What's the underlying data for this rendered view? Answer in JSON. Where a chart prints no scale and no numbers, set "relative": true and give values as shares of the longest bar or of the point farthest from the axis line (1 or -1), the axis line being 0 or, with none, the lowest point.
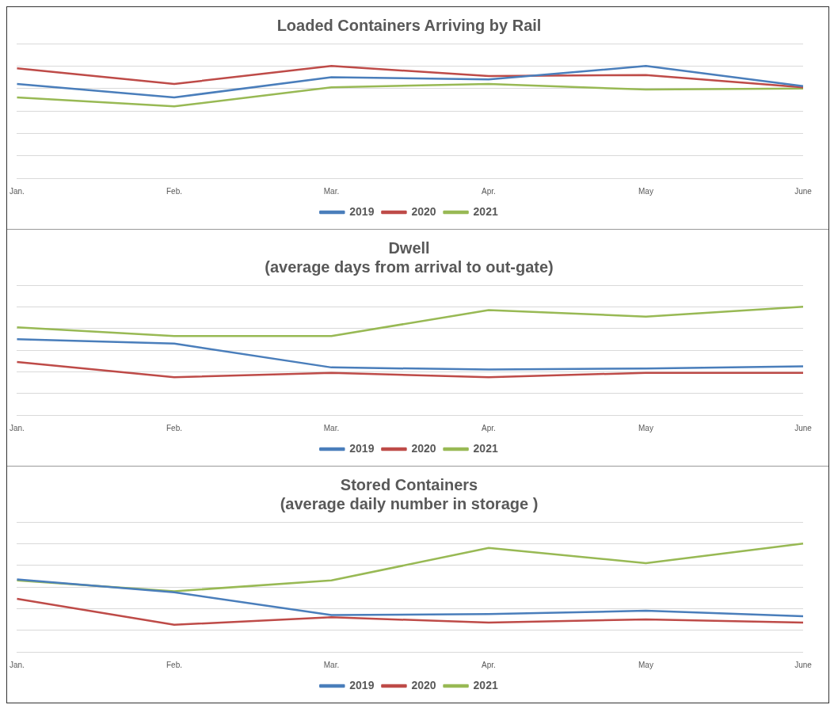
{
  "chart_data": [
    {
      "type": "line",
      "title": "Loaded Containers Arriving by Rail",
      "categories": [
        "Jan.",
        "Feb.",
        "Mar.",
        "Apr.",
        "May",
        "June"
      ],
      "relative": true,
      "grid": "y",
      "legend": "bottom",
      "marker": "none",
      "line_style": "solid",
      "series": [
        {
          "name": "2019",
          "color": "#4a7ebb",
          "values": [
            0.84,
            0.72,
            0.9,
            0.88,
            1,
            0.82
          ]
        },
        {
          "name": "2020",
          "color": "#be4b48",
          "values": [
            0.98,
            0.84,
            1,
            0.91,
            0.92,
            0.81
          ]
        },
        {
          "name": "2021",
          "color": "#98b954",
          "values": [
            0.72,
            0.64,
            0.81,
            0.84,
            0.79,
            0.8
          ]
        }
      ]
    },
    {
      "type": "line",
      "title": "Dwell",
      "subtitle": "(average days from arrival to out-gate)",
      "categories": [
        "Jan.",
        "Feb.",
        "Mar.",
        "Apr.",
        "May",
        "June"
      ],
      "relative": true,
      "grid": "y",
      "legend": "bottom",
      "marker": "none",
      "line_style": "solid",
      "series": [
        {
          "name": "2019",
          "color": "#4a7ebb",
          "values": [
            0.7,
            0.66,
            0.44,
            0.42,
            0.43,
            0.45
          ]
        },
        {
          "name": "2020",
          "color": "#be4b48",
          "values": [
            0.49,
            0.35,
            0.39,
            0.35,
            0.39,
            0.39
          ]
        },
        {
          "name": "2021",
          "color": "#98b954",
          "values": [
            0.81,
            0.73,
            0.73,
            0.97,
            0.91,
            1
          ]
        }
      ]
    },
    {
      "type": "line",
      "title": "Stored Containers",
      "subtitle": "(average daily number in storage )",
      "categories": [
        "Jan.",
        "Feb.",
        "Mar.",
        "Apr.",
        "May",
        "June"
      ],
      "relative": true,
      "grid": "y",
      "legend": "bottom",
      "marker": "none",
      "line_style": "solid",
      "series": [
        {
          "name": "2019",
          "color": "#4a7ebb",
          "values": [
            0.67,
            0.55,
            0.34,
            0.35,
            0.38,
            0.33
          ]
        },
        {
          "name": "2020",
          "color": "#be4b48",
          "values": [
            0.49,
            0.25,
            0.32,
            0.27,
            0.3,
            0.27
          ]
        },
        {
          "name": "2021",
          "color": "#98b954",
          "values": [
            0.66,
            0.56,
            0.66,
            0.96,
            0.82,
            1
          ]
        }
      ]
    }
  ]
}
